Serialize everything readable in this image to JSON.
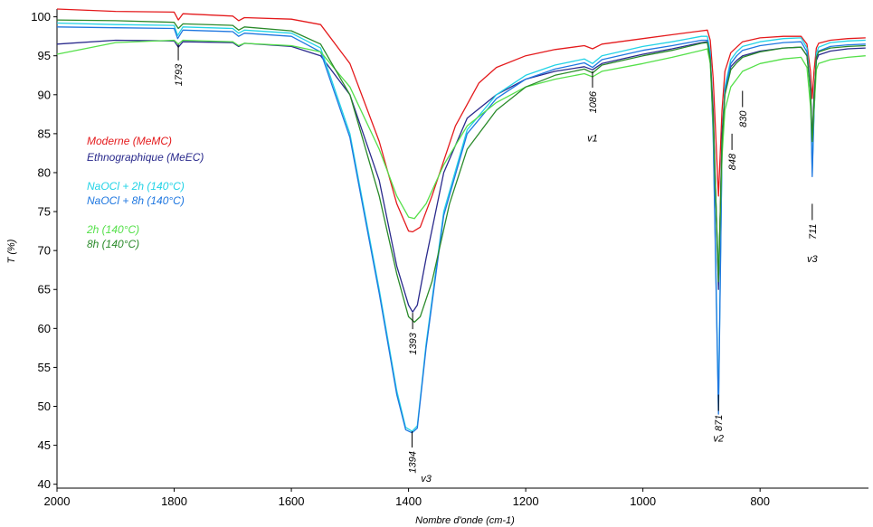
{
  "chart_data": {
    "type": "line",
    "title": "",
    "xlabel": "Nombre d'onde (cm-1)",
    "ylabel": "T (%)",
    "xlim": [
      2000,
      615
    ],
    "ylim": [
      39.5,
      101
    ],
    "x_ticks": [
      2000,
      1800,
      1600,
      1400,
      1200,
      1000,
      800
    ],
    "y_ticks": [
      40,
      45,
      50,
      55,
      60,
      65,
      70,
      75,
      80,
      85,
      90,
      95,
      100
    ],
    "grid": false,
    "legend": [
      {
        "label": "Moderne (MeMC)",
        "color": "#e41a1c"
      },
      {
        "label": "Ethnographique (MeEC)",
        "color": "#2a2a8c"
      },
      {
        "label": "NaOCl  + 2h (140°C)",
        "color": "#22d3e6"
      },
      {
        "label": "NaOCl + 8h (140°C)",
        "color": "#1f77e0"
      },
      {
        "label": "2h (140°C)",
        "color": "#55e04a"
      },
      {
        "label": "8h (140°C)",
        "color": "#2a8a2a"
      }
    ],
    "annotations": [
      {
        "text": "1793",
        "x": 1793,
        "y": 96.5
      },
      {
        "text": "1393",
        "x": 1393,
        "y": 62
      },
      {
        "text": "1394",
        "x": 1394,
        "y": 46.8
      },
      {
        "text": "v3",
        "x": 1370,
        "y": 40.3
      },
      {
        "text": "1086",
        "x": 1086,
        "y": 93
      },
      {
        "text": "v1",
        "x": 1086,
        "y": 84
      },
      {
        "text": "871",
        "x": 871,
        "y": 51.5
      },
      {
        "text": "v2",
        "x": 871,
        "y": 45.5
      },
      {
        "text": "848",
        "x": 848,
        "y": 85
      },
      {
        "text": "830",
        "x": 830,
        "y": 90.5
      },
      {
        "text": "711",
        "x": 711,
        "y": 76
      },
      {
        "text": "v3",
        "x": 711,
        "y": 68.5
      }
    ],
    "series": [
      {
        "color": "#e41a1c",
        "x": [
          2000,
          1900,
          1800,
          1793,
          1785,
          1700,
          1690,
          1680,
          1600,
          1550,
          1500,
          1450,
          1420,
          1400,
          1393,
          1380,
          1360,
          1320,
          1280,
          1250,
          1200,
          1150,
          1100,
          1086,
          1070,
          1000,
          950,
          900,
          890,
          885,
          880,
          871,
          865,
          860,
          850,
          840,
          830,
          800,
          760,
          730,
          720,
          714,
          711,
          708,
          704,
          700,
          680,
          650,
          620
        ],
        "y": [
          101,
          100.7,
          100.6,
          99.6,
          100.4,
          100.1,
          99.5,
          99.9,
          99.7,
          99,
          94,
          84,
          76,
          72.5,
          72.4,
          73,
          77,
          86,
          91.5,
          93.5,
          95,
          95.8,
          96.3,
          95.9,
          96.5,
          97.2,
          97.7,
          98.2,
          98.3,
          97,
          92,
          77,
          88,
          93,
          95.4,
          96.1,
          96.8,
          97.3,
          97.5,
          97.5,
          96.5,
          93,
          89.5,
          93,
          96,
          96.6,
          97,
          97.2,
          97.3
        ]
      },
      {
        "color": "#2a2a8c",
        "x": [
          2000,
          1900,
          1800,
          1793,
          1785,
          1700,
          1690,
          1680,
          1600,
          1550,
          1500,
          1450,
          1420,
          1400,
          1393,
          1385,
          1370,
          1340,
          1300,
          1250,
          1200,
          1150,
          1100,
          1086,
          1070,
          1000,
          950,
          900,
          890,
          885,
          880,
          871,
          865,
          860,
          850,
          840,
          830,
          800,
          760,
          730,
          720,
          714,
          711,
          708,
          704,
          700,
          680,
          650,
          620
        ],
        "y": [
          96.5,
          97,
          96.9,
          96.1,
          96.8,
          96.7,
          96.2,
          96.6,
          96.2,
          95,
          90,
          79,
          68,
          63,
          62.1,
          63,
          69,
          80,
          87,
          90,
          92,
          93,
          93.6,
          93.2,
          94,
          95.2,
          95.9,
          96.7,
          96.8,
          95,
          88,
          65,
          85,
          90.5,
          93.6,
          94.4,
          95,
          95.6,
          96,
          96.1,
          95,
          91,
          84,
          90,
          94.4,
          95.1,
          95.6,
          95.9,
          96
        ]
      },
      {
        "color": "#22d3e6",
        "x": [
          2000,
          1900,
          1800,
          1794,
          1785,
          1700,
          1690,
          1680,
          1600,
          1550,
          1500,
          1450,
          1420,
          1405,
          1394,
          1385,
          1370,
          1340,
          1300,
          1250,
          1200,
          1150,
          1100,
          1086,
          1070,
          1000,
          950,
          900,
          890,
          885,
          880,
          871,
          865,
          860,
          850,
          840,
          830,
          800,
          760,
          730,
          720,
          714,
          711,
          708,
          704,
          700,
          680,
          650,
          620
        ],
        "y": [
          99.2,
          99,
          98.9,
          97.6,
          98.7,
          98.5,
          97.9,
          98.3,
          97.9,
          96,
          85,
          65,
          52,
          47.3,
          46.8,
          47.5,
          58,
          75,
          85.5,
          90,
          92.5,
          93.8,
          94.6,
          94,
          95,
          96.2,
          96.8,
          97.5,
          97.5,
          95.5,
          85,
          50,
          83,
          91,
          94.5,
          95.5,
          96.2,
          96.8,
          97.2,
          97.3,
          96,
          91,
          80,
          88,
          95.3,
          96.1,
          96.7,
          96.9,
          97
        ]
      },
      {
        "color": "#1f77e0",
        "x": [
          2000,
          1900,
          1800,
          1794,
          1785,
          1700,
          1690,
          1680,
          1600,
          1550,
          1500,
          1450,
          1420,
          1405,
          1394,
          1385,
          1370,
          1340,
          1300,
          1250,
          1200,
          1150,
          1100,
          1086,
          1070,
          1000,
          950,
          900,
          890,
          885,
          880,
          871,
          865,
          860,
          850,
          840,
          830,
          800,
          760,
          730,
          720,
          714,
          711,
          708,
          704,
          700,
          680,
          650,
          620
        ],
        "y": [
          98.7,
          98.6,
          98.5,
          97.2,
          98.3,
          98.1,
          97.5,
          97.9,
          97.5,
          95.5,
          84.5,
          64.5,
          51.5,
          47,
          46.6,
          47.2,
          57.5,
          74.5,
          85,
          89.5,
          92,
          93.3,
          94.1,
          93.5,
          94.5,
          95.7,
          96.3,
          97,
          97,
          95,
          84.5,
          49,
          82.5,
          90.5,
          94,
          95,
          95.7,
          96.3,
          96.7,
          96.8,
          95.5,
          90.5,
          79.5,
          87.5,
          94.8,
          95.6,
          96.2,
          96.4,
          96.5
        ]
      },
      {
        "color": "#55e04a",
        "x": [
          2000,
          1900,
          1800,
          1793,
          1785,
          1700,
          1690,
          1680,
          1600,
          1550,
          1500,
          1450,
          1420,
          1400,
          1390,
          1370,
          1340,
          1300,
          1250,
          1200,
          1150,
          1100,
          1086,
          1070,
          1000,
          950,
          900,
          890,
          885,
          880,
          871,
          865,
          860,
          850,
          840,
          830,
          800,
          760,
          730,
          720,
          714,
          711,
          708,
          704,
          700,
          680,
          650,
          620
        ],
        "y": [
          95.2,
          96.7,
          97,
          96.5,
          97,
          96.8,
          96.3,
          96.6,
          96.3,
          95.5,
          91,
          83,
          77,
          74.3,
          74.1,
          76,
          81,
          86,
          89,
          91,
          92,
          92.7,
          92.3,
          93,
          94,
          94.8,
          95.7,
          95.9,
          94,
          86,
          67,
          82,
          88,
          91,
          92,
          93,
          94,
          94.6,
          94.8,
          93.5,
          88.5,
          84,
          88,
          93.2,
          94,
          94.5,
          94.8,
          95
        ]
      },
      {
        "color": "#2a8a2a",
        "x": [
          2000,
          1900,
          1800,
          1793,
          1785,
          1700,
          1690,
          1680,
          1600,
          1550,
          1500,
          1450,
          1420,
          1400,
          1390,
          1380,
          1360,
          1330,
          1300,
          1250,
          1200,
          1150,
          1100,
          1086,
          1070,
          1000,
          950,
          900,
          890,
          885,
          880,
          871,
          865,
          860,
          850,
          840,
          830,
          800,
          760,
          730,
          720,
          714,
          711,
          708,
          704,
          700,
          680,
          650,
          620
        ],
        "y": [
          99.6,
          99.5,
          99.3,
          98.5,
          99.1,
          98.9,
          98.3,
          98.7,
          98.2,
          96.5,
          90,
          77,
          67,
          61.5,
          60.8,
          61.5,
          66,
          76,
          83,
          88,
          91,
          92.5,
          93.3,
          92.8,
          93.8,
          95,
          95.7,
          96.6,
          96.7,
          94.5,
          87,
          66,
          84,
          90,
          93.2,
          94.1,
          94.8,
          95.5,
          96,
          96.1,
          95,
          90.5,
          84,
          89,
          94.8,
          95.5,
          96,
          96.2,
          96.3
        ]
      }
    ]
  }
}
